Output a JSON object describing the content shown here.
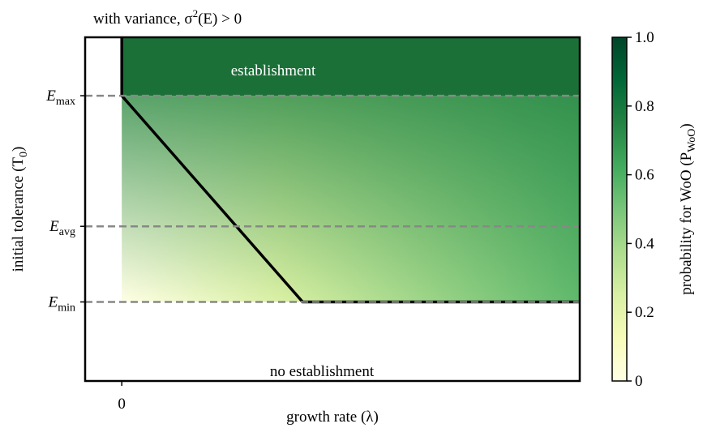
{
  "chart_data": {
    "type": "phase-diagram",
    "title": {
      "before": "with variance, σ",
      "superscript": "2",
      "after": "(E) > 0"
    },
    "x_label": "growth rate (λ)",
    "y_label": {
      "before": "initial tolerance (T",
      "subscript": "0",
      "after": ")"
    },
    "xlim": [
      -0.08,
      1
    ],
    "xticks": [
      0
    ],
    "ylim": [
      0,
      1
    ],
    "yticks": [
      {
        "value": 0.83,
        "label": "E",
        "subscript": "max"
      },
      {
        "value": 0.45,
        "label": "E",
        "subscript": "avg"
      },
      {
        "value": 0.23,
        "label": "E",
        "subscript": "min"
      }
    ],
    "boundary": {
      "x": [
        0,
        0,
        0.395,
        1
      ],
      "y": [
        1,
        0.83,
        0.23,
        0.23
      ]
    },
    "annotations": [
      "establishment",
      "no establishment"
    ],
    "colorbar": {
      "label": {
        "before": "probability for WoO (P",
        "subscript": "WoO",
        "after": ")"
      },
      "clim": [
        0,
        1
      ],
      "ticks": [
        0,
        0.2,
        0.4,
        0.6,
        0.8,
        {
          "value": 1,
          "label": "1.0"
        }
      ],
      "colormap": [
        "#ffffe5",
        "#f7fcb9",
        "#d9f0a3",
        "#addd8e",
        "#78c679",
        "#41ab5d",
        "#238443",
        "#006837",
        "#004529"
      ]
    },
    "grid": true
  }
}
